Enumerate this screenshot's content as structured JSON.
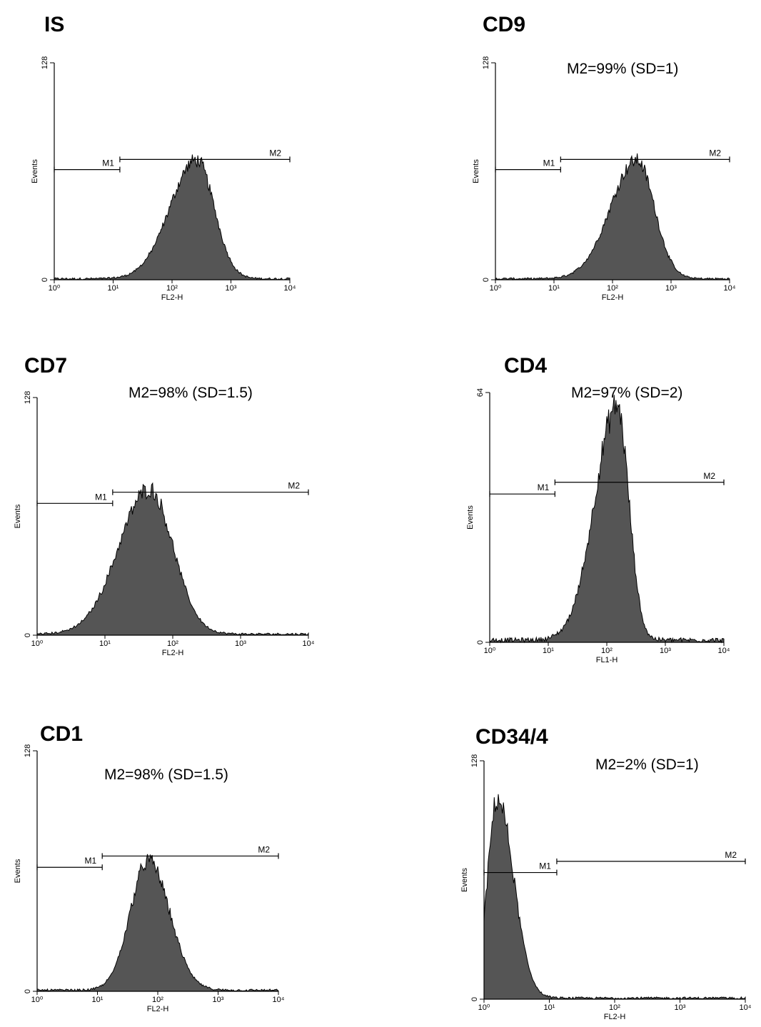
{
  "chart_data": [
    {
      "type": "area",
      "title": "IS",
      "annotation": "",
      "xlabel": "FL2-H",
      "ylabel": "Events",
      "x_scale": "log",
      "xlim": [
        1,
        10000
      ],
      "ylim": [
        0,
        128
      ],
      "x_tick_labels": [
        "10⁰",
        "10¹",
        "10²",
        "10³",
        "10⁴"
      ],
      "y_tick_labels": [
        "0",
        "128"
      ],
      "markers": [
        {
          "name": "M1",
          "from": 1,
          "to": 13,
          "level": 65
        },
        {
          "name": "M2",
          "from": 13,
          "to": 10000,
          "level": 71
        }
      ],
      "distribution": {
        "peak_x": 260,
        "peak_y": 70,
        "sigma_left": 0.45,
        "sigma_right": 0.3
      },
      "x": [
        1,
        3,
        10,
        20,
        40,
        80,
        150,
        260,
        400,
        700,
        1000,
        2000,
        10000
      ],
      "values": [
        1,
        1,
        2,
        4,
        10,
        25,
        48,
        70,
        52,
        18,
        5,
        1,
        0
      ]
    },
    {
      "type": "area",
      "title": "CD9",
      "annotation": "M2=99% (SD=1)",
      "xlabel": "FL2-H",
      "ylabel": "Events",
      "x_scale": "log",
      "xlim": [
        1,
        10000
      ],
      "ylim": [
        0,
        128
      ],
      "x_tick_labels": [
        "10⁰",
        "10¹",
        "10²",
        "10³",
        "10⁴"
      ],
      "y_tick_labels": [
        "0",
        "128"
      ],
      "markers": [
        {
          "name": "M1",
          "from": 1,
          "to": 13,
          "level": 65
        },
        {
          "name": "M2",
          "from": 13,
          "to": 10000,
          "level": 71
        }
      ],
      "distribution": {
        "peak_x": 260,
        "peak_y": 70,
        "sigma_left": 0.45,
        "sigma_right": 0.3
      },
      "x": [
        1,
        3,
        10,
        20,
        40,
        80,
        150,
        260,
        400,
        700,
        1000,
        2000,
        10000
      ],
      "values": [
        1,
        1,
        2,
        4,
        10,
        25,
        48,
        70,
        52,
        18,
        5,
        1,
        0
      ]
    },
    {
      "type": "area",
      "title": "CD7",
      "annotation": "M2=98% (SD=1.5)",
      "xlabel": "FL2-H",
      "ylabel": "Events",
      "x_scale": "log",
      "xlim": [
        1,
        10000
      ],
      "ylim": [
        0,
        128
      ],
      "x_tick_labels": [
        "10⁰",
        "10¹",
        "10²",
        "10³",
        "10⁴"
      ],
      "y_tick_labels": [
        "0",
        "128"
      ],
      "markers": [
        {
          "name": "M1",
          "from": 1,
          "to": 13,
          "level": 71
        },
        {
          "name": "M2",
          "from": 13,
          "to": 10000,
          "level": 77
        }
      ],
      "distribution": {
        "peak_x": 45,
        "peak_y": 78,
        "sigma_left": 0.45,
        "sigma_right": 0.35
      },
      "x": [
        1,
        3,
        10,
        20,
        45,
        80,
        150,
        300,
        600,
        10000
      ],
      "values": [
        1,
        2,
        8,
        25,
        78,
        50,
        20,
        5,
        1,
        0
      ]
    },
    {
      "type": "area",
      "title": "CD4",
      "annotation": "M2=97% (SD=2)",
      "xlabel": "FL1-H",
      "ylabel": "Events",
      "x_scale": "log",
      "xlim": [
        1,
        10000
      ],
      "ylim": [
        0,
        64
      ],
      "x_tick_labels": [
        "10⁰",
        "10¹",
        "10²",
        "10³",
        "10⁴"
      ],
      "y_tick_labels": [
        "0",
        "64"
      ],
      "markers": [
        {
          "name": "M1",
          "from": 1,
          "to": 13,
          "level": 38
        },
        {
          "name": "M2",
          "from": 13,
          "to": 10000,
          "level": 41
        }
      ],
      "distribution": {
        "peak_x": 150,
        "peak_y": 60,
        "sigma_left": 0.38,
        "sigma_right": 0.2
      },
      "x": [
        1,
        5,
        15,
        30,
        60,
        100,
        150,
        250,
        400,
        1000,
        10000
      ],
      "values": [
        2,
        1,
        4,
        12,
        38,
        52,
        60,
        44,
        12,
        1,
        0
      ]
    },
    {
      "type": "area",
      "title": "CD1",
      "annotation": "M2=98% (SD=1.5)",
      "xlabel": "FL2-H",
      "ylabel": "Events",
      "x_scale": "log",
      "xlim": [
        1,
        10000
      ],
      "ylim": [
        0,
        128
      ],
      "x_tick_labels": [
        "10⁰",
        "10¹",
        "10²",
        "10³",
        "10⁴"
      ],
      "y_tick_labels": [
        "0",
        "128"
      ],
      "markers": [
        {
          "name": "M1",
          "from": 1,
          "to": 12,
          "level": 66
        },
        {
          "name": "M2",
          "from": 12,
          "to": 10000,
          "level": 72
        }
      ],
      "distribution": {
        "peak_x": 70,
        "peak_y": 69,
        "sigma_left": 0.3,
        "sigma_right": 0.35
      },
      "x": [
        1,
        10,
        20,
        40,
        70,
        150,
        300,
        600,
        10000
      ],
      "values": [
        1,
        2,
        15,
        50,
        69,
        38,
        12,
        1,
        0
      ]
    },
    {
      "type": "area",
      "title": "CD34/4",
      "annotation": "M2=2% (SD=1)",
      "xlabel": "FL2-H",
      "ylabel": "Events",
      "x_scale": "log",
      "xlim": [
        1,
        10000
      ],
      "ylim": [
        0,
        128
      ],
      "x_tick_labels": [
        "10⁰",
        "10¹",
        "10²",
        "10³",
        "10⁴"
      ],
      "y_tick_labels": [
        "0",
        "128"
      ],
      "markers": [
        {
          "name": "M1",
          "from": 1,
          "to": 13,
          "level": 68
        },
        {
          "name": "M2",
          "from": 13,
          "to": 10000,
          "level": 74
        }
      ],
      "distribution": {
        "peak_x": 1.6,
        "peak_y": 107,
        "sigma_left": 0.15,
        "sigma_right": 0.25
      },
      "x": [
        1,
        1.6,
        2.5,
        4,
        6,
        10,
        30,
        100,
        1000,
        10000
      ],
      "values": [
        60,
        107,
        80,
        30,
        12,
        6,
        3,
        1,
        0,
        0
      ]
    }
  ]
}
